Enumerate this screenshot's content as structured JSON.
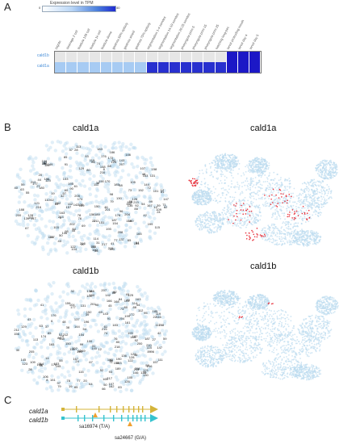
{
  "panels": {
    "a": "A",
    "b": "B",
    "c": "C"
  },
  "heatmap": {
    "legend_title": "Expression level in TPM",
    "legend_min": "0",
    "legend_max": "40",
    "columns": [
      "zygote",
      "cleavage 2 cell",
      "blastula 128 cell",
      "blastula 1k cell",
      "blastula dome",
      "gastrula 50% epiboly",
      "gastrula shield",
      "gastrula 75% epiboly",
      "segmentation 1-4 somites",
      "segmentation 14-19 somites",
      "segmentation 20-25 somites",
      "pharyngula prim-5",
      "pharyngula prim-15",
      "pharyngula prim-25",
      "hatching long-pec",
      "larval protruding mouth",
      "larval day 4",
      "larval day 5"
    ],
    "rows": [
      {
        "name": "cald1b",
        "levels": [
          0,
          0,
          0,
          0,
          0,
          0,
          0,
          0,
          0,
          0,
          0,
          0,
          0,
          0,
          0,
          6,
          6,
          6
        ]
      },
      {
        "name": "cald1a",
        "levels": [
          2,
          2,
          2,
          2,
          2,
          2,
          2,
          2,
          5,
          5,
          5,
          5,
          5,
          5,
          5,
          6,
          6,
          6
        ]
      }
    ],
    "level_colors": [
      "#e6e6e6",
      "#dbe9fb",
      "#a7cbf3",
      "#6d9ce6",
      "#3f63d8",
      "#2830cf",
      "#1c18c6"
    ]
  },
  "umap": {
    "left_top_title": "cald1a",
    "right_top_title": "cald1a",
    "left_bottom_title": "cald1b",
    "right_bottom_title": "cald1b",
    "highlight_color": "#e8323c",
    "base_color": "#bcdcf0"
  },
  "cluster_labels": [
    "149",
    "188",
    "190",
    "199",
    "204",
    "208",
    "125",
    "126",
    "127",
    "116",
    "214",
    "215",
    "212",
    "213",
    "218",
    "200",
    "202",
    "74",
    "76",
    "78",
    "133",
    "134",
    "135",
    "136",
    "144",
    "146",
    "176",
    "170",
    "165",
    "24",
    "28",
    "32",
    "35",
    "37",
    "39",
    "40",
    "41",
    "43",
    "44",
    "45",
    "46",
    "48",
    "50",
    "52",
    "54",
    "55",
    "57",
    "58",
    "59",
    "60",
    "61",
    "62",
    "63",
    "64",
    "65",
    "66",
    "67",
    "68",
    "69",
    "70",
    "71",
    "72",
    "73",
    "95",
    "97",
    "98",
    "99",
    "100",
    "101",
    "103",
    "105",
    "106",
    "110",
    "111",
    "113",
    "114",
    "119",
    "121",
    "137",
    "140",
    "148",
    "151",
    "152",
    "153",
    "154",
    "155",
    "156",
    "157",
    "160",
    "161",
    "163",
    "164",
    "168",
    "178",
    "182",
    "185",
    "186",
    "195",
    "6",
    "8",
    "12",
    "14",
    "19",
    "20",
    "22",
    "27",
    "30",
    "31",
    "38",
    "42",
    "77",
    "79",
    "80",
    "81",
    "82",
    "83",
    "84",
    "85",
    "86",
    "88",
    "89",
    "90",
    "91",
    "92",
    "93",
    "96",
    "104",
    "107",
    "109",
    "112",
    "115",
    "117",
    "122",
    "123",
    "128",
    "129",
    "130",
    "131",
    "139",
    "142",
    "143",
    "145",
    "147",
    "150",
    "158",
    "159",
    "162",
    "166",
    "167",
    "169",
    "172",
    "174",
    "177",
    "180",
    "183",
    "187",
    "189",
    "193",
    "196",
    "201",
    "205",
    "207",
    "210",
    "211",
    "216",
    "217"
  ],
  "gene_models": [
    {
      "name": "cald1a",
      "allele": "sa16974 (T/A)",
      "color": "#d4b43a"
    },
    {
      "name": "cald1b",
      "allele": "sa24667 (G/A)",
      "color": "#36c3cf"
    }
  ],
  "marker_color": "#f0a030"
}
